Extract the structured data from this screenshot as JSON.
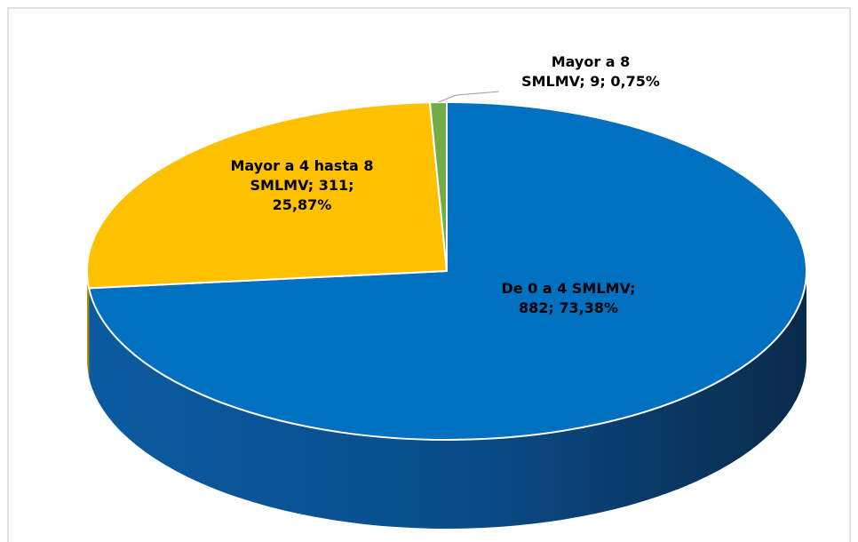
{
  "chart_data": {
    "type": "pie3d",
    "values": [
      882,
      311,
      9
    ],
    "value_labels": [
      [
        "De 0 a 4 SMLMV;",
        "882; 73,38%"
      ],
      [
        "Mayor a 4 hasta 8",
        "SMLMV; 311;",
        "25,87%"
      ],
      [
        "Mayor a 8",
        "SMLMV; 9; 0,75%"
      ]
    ],
    "colors": [
      "#0070c0",
      "#ffc000",
      "#70ad47"
    ]
  }
}
